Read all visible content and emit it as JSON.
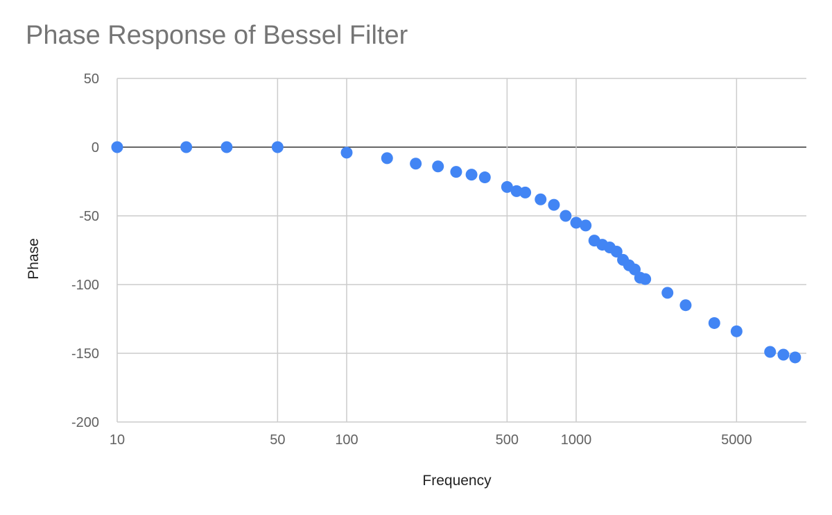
{
  "chart_data": {
    "type": "scatter",
    "title": "Phase Response of Bessel Filter",
    "xlabel": "Frequency",
    "ylabel": "Phase",
    "xscale": "log",
    "xlim": [
      10,
      7500
    ],
    "ylim": [
      -200,
      50
    ],
    "xticks": [
      10,
      50,
      100,
      500,
      1000,
      5000
    ],
    "yticks": [
      50,
      0,
      -50,
      -100,
      -150,
      -200
    ],
    "grid": true,
    "legend": "none",
    "colors": {
      "points": "#4285f4",
      "grid": "#cccccc",
      "zero_line": "#333333"
    },
    "series": [
      {
        "x": [
          10,
          20,
          30,
          50,
          100,
          150,
          200,
          250,
          300,
          350,
          400,
          500,
          550,
          600,
          700,
          800,
          900,
          1000,
          1100,
          1200,
          1300,
          1400,
          1500,
          1600,
          1700,
          1800,
          1900,
          2000,
          2500,
          3000,
          4000,
          5000,
          7000,
          8000,
          9000
        ],
        "y": [
          0,
          0,
          0,
          0,
          -4,
          -8,
          -12,
          -14,
          -18,
          -20,
          -22,
          -29,
          -32,
          -33,
          -38,
          -42,
          -50,
          -55,
          -57,
          -68,
          -71,
          -73,
          -76,
          -82,
          -86,
          -89,
          -95,
          -96,
          -106,
          -115,
          -128,
          -134,
          -149,
          -151,
          -153
        ]
      }
    ]
  }
}
